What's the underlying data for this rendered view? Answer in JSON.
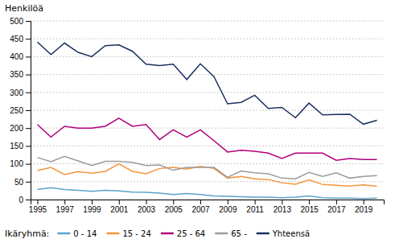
{
  "chart_data": {
    "type": "line",
    "ylabel": "Henkilöä",
    "annotations": [
      "Ikäryhmä:"
    ],
    "x": [
      1995,
      1996,
      1997,
      1998,
      1999,
      2000,
      2001,
      2002,
      2003,
      2004,
      2005,
      2006,
      2007,
      2008,
      2009,
      2010,
      2011,
      2012,
      2013,
      2014,
      2015,
      2016,
      2017,
      2018,
      2019,
      2020
    ],
    "series": [
      {
        "name": "0 - 14",
        "color": "#5BA3C9",
        "values": [
          28,
          33,
          28,
          26,
          23,
          26,
          24,
          21,
          20,
          18,
          14,
          17,
          14,
          10,
          9,
          8,
          7,
          7,
          5,
          7,
          10,
          5,
          4,
          4,
          3,
          4
        ]
      },
      {
        "name": "15 - 24",
        "color": "#F4953A",
        "values": [
          81,
          90,
          70,
          78,
          74,
          79,
          100,
          79,
          72,
          87,
          90,
          85,
          93,
          87,
          60,
          65,
          58,
          56,
          47,
          43,
          55,
          42,
          40,
          38,
          41,
          37
        ]
      },
      {
        "name": "25 - 64",
        "color": "#B0007C",
        "values": [
          210,
          175,
          205,
          200,
          200,
          205,
          228,
          205,
          210,
          168,
          195,
          175,
          195,
          165,
          133,
          138,
          135,
          130,
          115,
          130,
          130,
          130,
          110,
          115,
          112,
          112
        ]
      },
      {
        "name": "65 -",
        "color": "#9B9B9B",
        "values": [
          118,
          106,
          121,
          108,
          95,
          107,
          107,
          104,
          95,
          97,
          82,
          90,
          90,
          90,
          62,
          80,
          75,
          72,
          60,
          58,
          76,
          65,
          75,
          60,
          65,
          67
        ]
      },
      {
        "name": "Yhteensä",
        "color": "#1A3060",
        "values": [
          441,
          406,
          438,
          412,
          400,
          431,
          433,
          415,
          379,
          375,
          379,
          336,
          380,
          344,
          268,
          272,
          292,
          255,
          258,
          229,
          270,
          237,
          238,
          239,
          211,
          222
        ]
      }
    ],
    "xlim": [
      1994.5,
      2020.5
    ],
    "xticks": [
      1995,
      1997,
      1999,
      2001,
      2003,
      2005,
      2007,
      2009,
      2011,
      2013,
      2015,
      2017,
      2019
    ],
    "ylim": [
      0,
      500
    ],
    "yticks": [
      0,
      50,
      100,
      150,
      200,
      250,
      300,
      350,
      400,
      450,
      500
    ],
    "grid": true,
    "legend": "bottom"
  }
}
